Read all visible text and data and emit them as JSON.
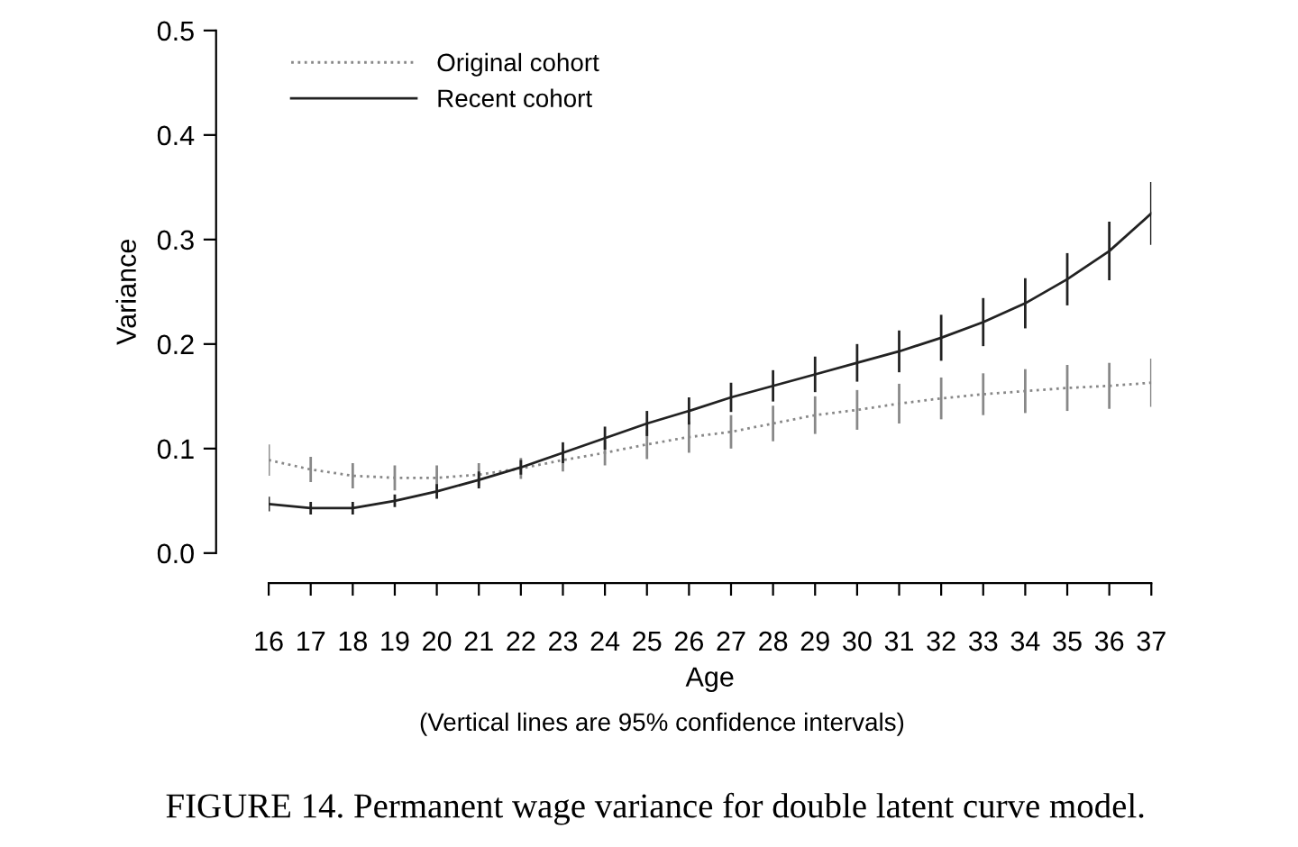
{
  "chart_data": {
    "type": "line",
    "title": "FIGURE 14. Permanent wage variance for double latent curve model.",
    "xlabel": "Age",
    "ylabel": "Variance",
    "annotations": [
      "(Vertical lines are 95% confidence intervals)"
    ],
    "x": [
      16,
      17,
      18,
      19,
      20,
      21,
      22,
      23,
      24,
      25,
      26,
      27,
      28,
      29,
      30,
      31,
      32,
      33,
      34,
      35,
      36,
      37
    ],
    "xlim": [
      16,
      37
    ],
    "xticks": [
      16,
      17,
      18,
      19,
      20,
      21,
      22,
      23,
      24,
      25,
      26,
      27,
      28,
      29,
      30,
      31,
      32,
      33,
      34,
      35,
      36,
      37
    ],
    "ylim": [
      0,
      0.5
    ],
    "yticks": [
      {
        "value": 0,
        "label": "0.0"
      },
      0.1,
      0.2,
      0.3,
      0.4,
      0.5
    ],
    "grid": false,
    "legend": "top left",
    "marker": "none",
    "series": [
      {
        "name": "Original cohort",
        "color": "#888888",
        "line_style": "dotted",
        "values": [
          0.089,
          0.08,
          0.074,
          0.072,
          0.072,
          0.075,
          0.081,
          0.089,
          0.096,
          0.104,
          0.111,
          0.116,
          0.124,
          0.132,
          0.137,
          0.143,
          0.148,
          0.152,
          0.155,
          0.158,
          0.16,
          0.163
        ],
        "errors": [
          0.015,
          0.012,
          0.012,
          0.012,
          0.012,
          0.011,
          0.01,
          0.011,
          0.012,
          0.014,
          0.015,
          0.016,
          0.017,
          0.018,
          0.019,
          0.019,
          0.02,
          0.02,
          0.021,
          0.022,
          0.022,
          0.023
        ]
      },
      {
        "name": "Recent cohort",
        "color": "#222222",
        "line_style": "solid",
        "values": [
          0.047,
          0.043,
          0.043,
          0.05,
          0.059,
          0.07,
          0.082,
          0.096,
          0.11,
          0.124,
          0.136,
          0.149,
          0.16,
          0.171,
          0.182,
          0.193,
          0.206,
          0.221,
          0.239,
          0.262,
          0.289,
          0.325
        ],
        "errors": [
          0.007,
          0.006,
          0.006,
          0.006,
          0.007,
          0.008,
          0.007,
          0.01,
          0.011,
          0.012,
          0.013,
          0.014,
          0.015,
          0.017,
          0.018,
          0.02,
          0.022,
          0.023,
          0.024,
          0.025,
          0.028,
          0.03
        ]
      }
    ]
  }
}
